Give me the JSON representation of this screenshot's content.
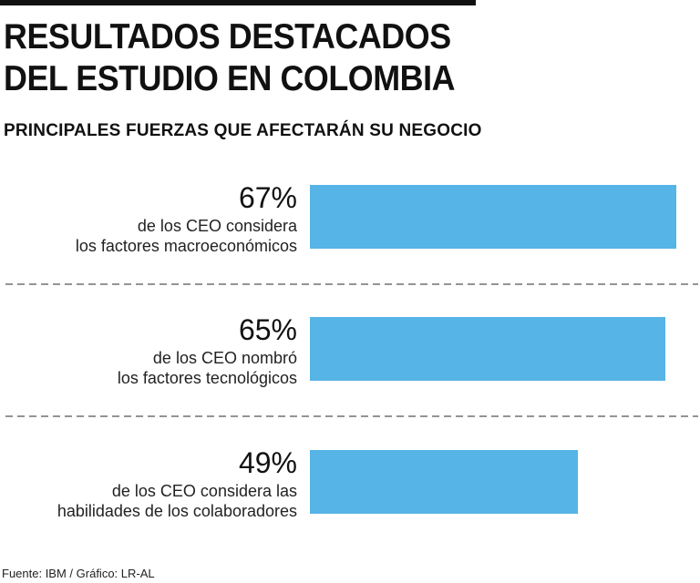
{
  "header": {
    "title_line1": "RESULTADOS DESTACADOS",
    "title_line2": "DEL ESTUDIO EN COLOMBIA",
    "subtitle": "PRINCIPALES FUERZAS QUE AFECTARÁN SU NEGOCIO"
  },
  "chart_data": {
    "type": "bar",
    "orientation": "horizontal",
    "unit": "%",
    "xlim": [
      0,
      67
    ],
    "items": [
      {
        "value": 67,
        "value_label": "67%",
        "desc_line1": "de los CEO considera",
        "desc_line2": "los factores macroeconómicos"
      },
      {
        "value": 65,
        "value_label": "65%",
        "desc_line1": "de los CEO nombró",
        "desc_line2": "los factores tecnológicos"
      },
      {
        "value": 49,
        "value_label": "49%",
        "desc_line1": "de los CEO considera las",
        "desc_line2": "habilidades de los colaboradores"
      }
    ],
    "grid": false,
    "separators": "dashed",
    "bar_color": "#56b4e6"
  },
  "footer": {
    "source": "Fuente: IBM / Gráfico: LR-AL"
  }
}
